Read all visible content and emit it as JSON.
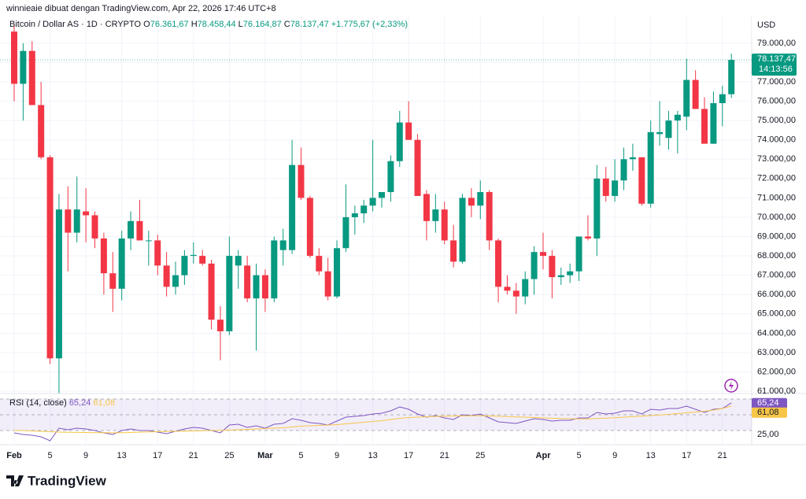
{
  "chart_data": {
    "type": "candlestick",
    "attribution": "winnieaie dibuat dengan TradingView.com, Apr 22, 2026 17:46 UTC+8",
    "title": "Bitcoin / Dollar AS · 1D · CRYPTO",
    "legend_ohlc": [
      {
        "key": "O",
        "text": "76.361,67"
      },
      {
        "key": "H",
        "text": "78.458,44"
      },
      {
        "key": "L",
        "text": "76.164,87"
      },
      {
        "key": "C",
        "text": "78.137,47"
      }
    ],
    "change": "+1.775,67 (+2,33%)",
    "currency": "USD",
    "last_label": "78.137,47",
    "countdown": "14:13:56",
    "brand": "TradingView",
    "up_color": "#089981",
    "down_color": "#f23645",
    "x": [
      "2026-02-01",
      "2026-02-02",
      "2026-02-03",
      "2026-02-04",
      "2026-02-05",
      "2026-02-06",
      "2026-02-07",
      "2026-02-08",
      "2026-02-09",
      "2026-02-10",
      "2026-02-11",
      "2026-02-12",
      "2026-02-13",
      "2026-02-14",
      "2026-02-15",
      "2026-02-16",
      "2026-02-17",
      "2026-02-18",
      "2026-02-19",
      "2026-02-20",
      "2026-02-21",
      "2026-02-22",
      "2026-02-23",
      "2026-02-24",
      "2026-02-25",
      "2026-02-26",
      "2026-02-27",
      "2026-02-28",
      "2026-03-01",
      "2026-03-02",
      "2026-03-03",
      "2026-03-04",
      "2026-03-05",
      "2026-03-06",
      "2026-03-07",
      "2026-03-08",
      "2026-03-09",
      "2026-03-10",
      "2026-03-11",
      "2026-03-12",
      "2026-03-13",
      "2026-03-14",
      "2026-03-15",
      "2026-03-16",
      "2026-03-17",
      "2026-03-18",
      "2026-03-19",
      "2026-03-20",
      "2026-03-21",
      "2026-03-22",
      "2026-03-23",
      "2026-03-24",
      "2026-03-25",
      "2026-03-26",
      "2026-03-27",
      "2026-03-28",
      "2026-03-29",
      "2026-03-30",
      "2026-03-31",
      "2026-04-01",
      "2026-04-02",
      "2026-04-03",
      "2026-04-04",
      "2026-04-05",
      "2026-04-06",
      "2026-04-07",
      "2026-04-08",
      "2026-04-09",
      "2026-04-10",
      "2026-04-11",
      "2026-04-12",
      "2026-04-13",
      "2026-04-14",
      "2026-04-15",
      "2026-04-16",
      "2026-04-17",
      "2026-04-18",
      "2026-04-19",
      "2026-04-20",
      "2026-04-21",
      "2026-04-22"
    ],
    "open": [
      79600,
      76900,
      78600,
      75800,
      73100,
      62700,
      70400,
      69200,
      70300,
      70100,
      68900,
      67100,
      66300,
      68900,
      69800,
      68800,
      68800,
      67500,
      66400,
      67000,
      68000,
      68000,
      67600,
      64700,
      64100,
      67500,
      67500,
      65800,
      67000,
      65800,
      68300,
      68300,
      72700,
      71000,
      68000,
      67200,
      65900,
      68400,
      70000,
      70200,
      70600,
      71000,
      71300,
      72900,
      74900,
      74000,
      71200,
      69800,
      70400,
      68800,
      67700,
      71000,
      70600,
      71300,
      68800,
      66400,
      66200,
      65900,
      66800,
      68200,
      68000,
      66900,
      67000,
      67200,
      69000,
      68900,
      72000,
      71100,
      71900,
      73000,
      73100,
      70700,
      74300,
      74100,
      75000,
      75200,
      77100,
      75600,
      73800,
      75900,
      76361.67
    ],
    "high": [
      80000,
      79000,
      79100,
      77000,
      73200,
      71200,
      71600,
      72100,
      71500,
      70300,
      69200,
      68200,
      69300,
      70300,
      70900,
      69300,
      69100,
      68200,
      67700,
      68300,
      68700,
      68300,
      67800,
      65400,
      69000,
      68300,
      68000,
      67600,
      67300,
      69000,
      69400,
      74000,
      73600,
      71100,
      68400,
      67900,
      68800,
      71700,
      70600,
      70900,
      74000,
      71300,
      73200,
      75500,
      76000,
      74300,
      71400,
      71200,
      70800,
      69600,
      71200,
      71500,
      71900,
      71400,
      68900,
      67000,
      66600,
      67200,
      68500,
      69200,
      68300,
      67400,
      67600,
      69000,
      70100,
      72700,
      72600,
      73000,
      73600,
      73800,
      73100,
      75000,
      76000,
      75500,
      75500,
      78200,
      77600,
      76200,
      76500,
      76800,
      78458.44
    ],
    "low": [
      76000,
      75000,
      75800,
      73000,
      62400,
      60900,
      67200,
      68700,
      68700,
      68400,
      66000,
      65100,
      65700,
      68300,
      68800,
      67500,
      67000,
      65900,
      66000,
      66500,
      67600,
      67500,
      64200,
      62600,
      63900,
      66300,
      65600,
      63100,
      65100,
      65600,
      67500,
      68100,
      70900,
      67900,
      67000,
      65700,
      65800,
      68200,
      69100,
      69700,
      70300,
      70500,
      70800,
      72600,
      74000,
      71200,
      68800,
      69200,
      68600,
      67400,
      67600,
      70000,
      69900,
      68300,
      65600,
      66000,
      65000,
      65500,
      66000,
      67300,
      65800,
      66500,
      66600,
      66700,
      68800,
      68000,
      70800,
      70800,
      71400,
      72400,
      70600,
      70500,
      73700,
      73500,
      73300,
      74500,
      75600,
      73800,
      73800,
      74700,
      76164.87
    ],
    "close": [
      76900,
      78600,
      75800,
      73100,
      62700,
      70400,
      69200,
      70400,
      70100,
      68900,
      67100,
      66300,
      68900,
      69800,
      68800,
      68800,
      67500,
      66400,
      67000,
      68000,
      68050,
      67600,
      64700,
      64100,
      68000,
      68000,
      65800,
      67000,
      65800,
      68800,
      68800,
      72700,
      71000,
      68000,
      67200,
      65900,
      68400,
      70000,
      70200,
      70600,
      71000,
      71300,
      72900,
      74900,
      74000,
      71100,
      69800,
      70400,
      68800,
      67700,
      71000,
      70600,
      71300,
      68800,
      66400,
      66200,
      65900,
      66800,
      68200,
      68000,
      66900,
      67000,
      67200,
      69000,
      68900,
      72000,
      71100,
      71900,
      73000,
      73100,
      70700,
      74400,
      74400,
      75000,
      75300,
      77100,
      75600,
      73800,
      75900,
      76361.67,
      78137.47
    ],
    "ylim": [
      60880,
      80420
    ],
    "yticks": [
      {
        "value": 61000,
        "label": "61.000,00"
      },
      {
        "value": 62000,
        "label": "62.000,00"
      },
      {
        "value": 63000,
        "label": "63.000,00"
      },
      {
        "value": 64000,
        "label": "64.000,00"
      },
      {
        "value": 65000,
        "label": "65.000,00"
      },
      {
        "value": 66000,
        "label": "66.000,00"
      },
      {
        "value": 67000,
        "label": "67.000,00"
      },
      {
        "value": 68000,
        "label": "68.000,00"
      },
      {
        "value": 69000,
        "label": "69.000,00"
      },
      {
        "value": 70000,
        "label": "70.000,00"
      },
      {
        "value": 71000,
        "label": "71.000,00"
      },
      {
        "value": 72000,
        "label": "72.000,00"
      },
      {
        "value": 73000,
        "label": "73.000,00"
      },
      {
        "value": 74000,
        "label": "74.000,00"
      },
      {
        "value": 75000,
        "label": "75.000,00"
      },
      {
        "value": 76000,
        "label": "76.000,00"
      },
      {
        "value": 77000,
        "label": "77.000,00"
      },
      {
        "value": 78000,
        "label": "78.000,00"
      },
      {
        "value": 79000,
        "label": "79.000,00"
      }
    ],
    "xticks": [
      {
        "value": "2026-02-01",
        "label": "Feb"
      },
      {
        "value": "2026-02-05",
        "label": "5"
      },
      {
        "value": "2026-02-09",
        "label": "9"
      },
      {
        "value": "2026-02-13",
        "label": "13"
      },
      {
        "value": "2026-02-17",
        "label": "17"
      },
      {
        "value": "2026-02-21",
        "label": "21"
      },
      {
        "value": "2026-02-25",
        "label": "25"
      },
      {
        "value": "2026-03-01",
        "label": "Mar"
      },
      {
        "value": "2026-03-05",
        "label": "5"
      },
      {
        "value": "2026-03-09",
        "label": "9"
      },
      {
        "value": "2026-03-13",
        "label": "13"
      },
      {
        "value": "2026-03-17",
        "label": "17"
      },
      {
        "value": "2026-03-21",
        "label": "21"
      },
      {
        "value": "2026-03-25",
        "label": "25"
      },
      {
        "value": "2026-04-01",
        "label": "Apr"
      },
      {
        "value": "2026-04-05",
        "label": "5"
      },
      {
        "value": "2026-04-09",
        "label": "9"
      },
      {
        "value": "2026-04-13",
        "label": "13"
      },
      {
        "value": "2026-04-17",
        "label": "17"
      },
      {
        "value": "2026-04-21",
        "label": "21"
      }
    ],
    "grid": true,
    "rsi": {
      "title": "RSI (14, close)",
      "ylim": [
        12,
        77
      ],
      "yticks": [
        {
          "value": 25,
          "label": "25,00"
        }
      ],
      "levels": [
        30,
        50,
        70
      ],
      "band_color": "#7e57c2",
      "series": [
        {
          "name": "RSI",
          "color": "#7e57c2",
          "value_label": "65,24",
          "values": [
            27,
            25,
            24,
            22,
            17,
            33,
            31,
            33,
            32,
            30,
            27,
            25,
            30,
            32,
            30,
            30,
            28,
            26,
            29,
            32,
            34,
            33,
            30,
            27,
            37,
            38,
            34,
            36,
            33,
            38,
            39,
            45,
            43,
            40,
            39,
            37,
            42,
            47,
            48,
            49,
            51,
            52,
            55,
            60,
            57,
            51,
            47,
            49,
            46,
            44,
            50,
            49,
            51,
            46,
            41,
            40,
            39,
            42,
            45,
            44,
            42,
            43,
            43,
            46,
            46,
            53,
            51,
            52,
            55,
            55,
            51,
            57,
            56,
            58,
            58,
            61,
            57,
            53,
            57,
            58,
            65.24
          ]
        },
        {
          "name": "RSI MA",
          "color": "#f7c548",
          "value_label": "61,08",
          "values": [
            30,
            30,
            29.5,
            29,
            28.5,
            28,
            27.8,
            27.6,
            27.5,
            27.3,
            27.2,
            27.1,
            27.2,
            27.5,
            28,
            28.3,
            28.5,
            28.7,
            29,
            29.3,
            29.5,
            29.8,
            30,
            30.2,
            30.5,
            31,
            31.5,
            32,
            32.5,
            33,
            33.5,
            34.5,
            35.5,
            36,
            36.5,
            37,
            37.5,
            38.5,
            39.5,
            40.5,
            41.5,
            42.5,
            44,
            45.5,
            46.5,
            47,
            47.5,
            48,
            48.3,
            48.5,
            48.6,
            48.7,
            48.7,
            48.5,
            48.2,
            47.8,
            47.3,
            47,
            46.5,
            46,
            45.6,
            45.3,
            45,
            44.8,
            44.8,
            45.3,
            45.8,
            46.3,
            47,
            47.6,
            48.2,
            49,
            49.8,
            50.5,
            51.5,
            52.5,
            53.5,
            54.5,
            56,
            58,
            61.08
          ]
        }
      ]
    }
  }
}
